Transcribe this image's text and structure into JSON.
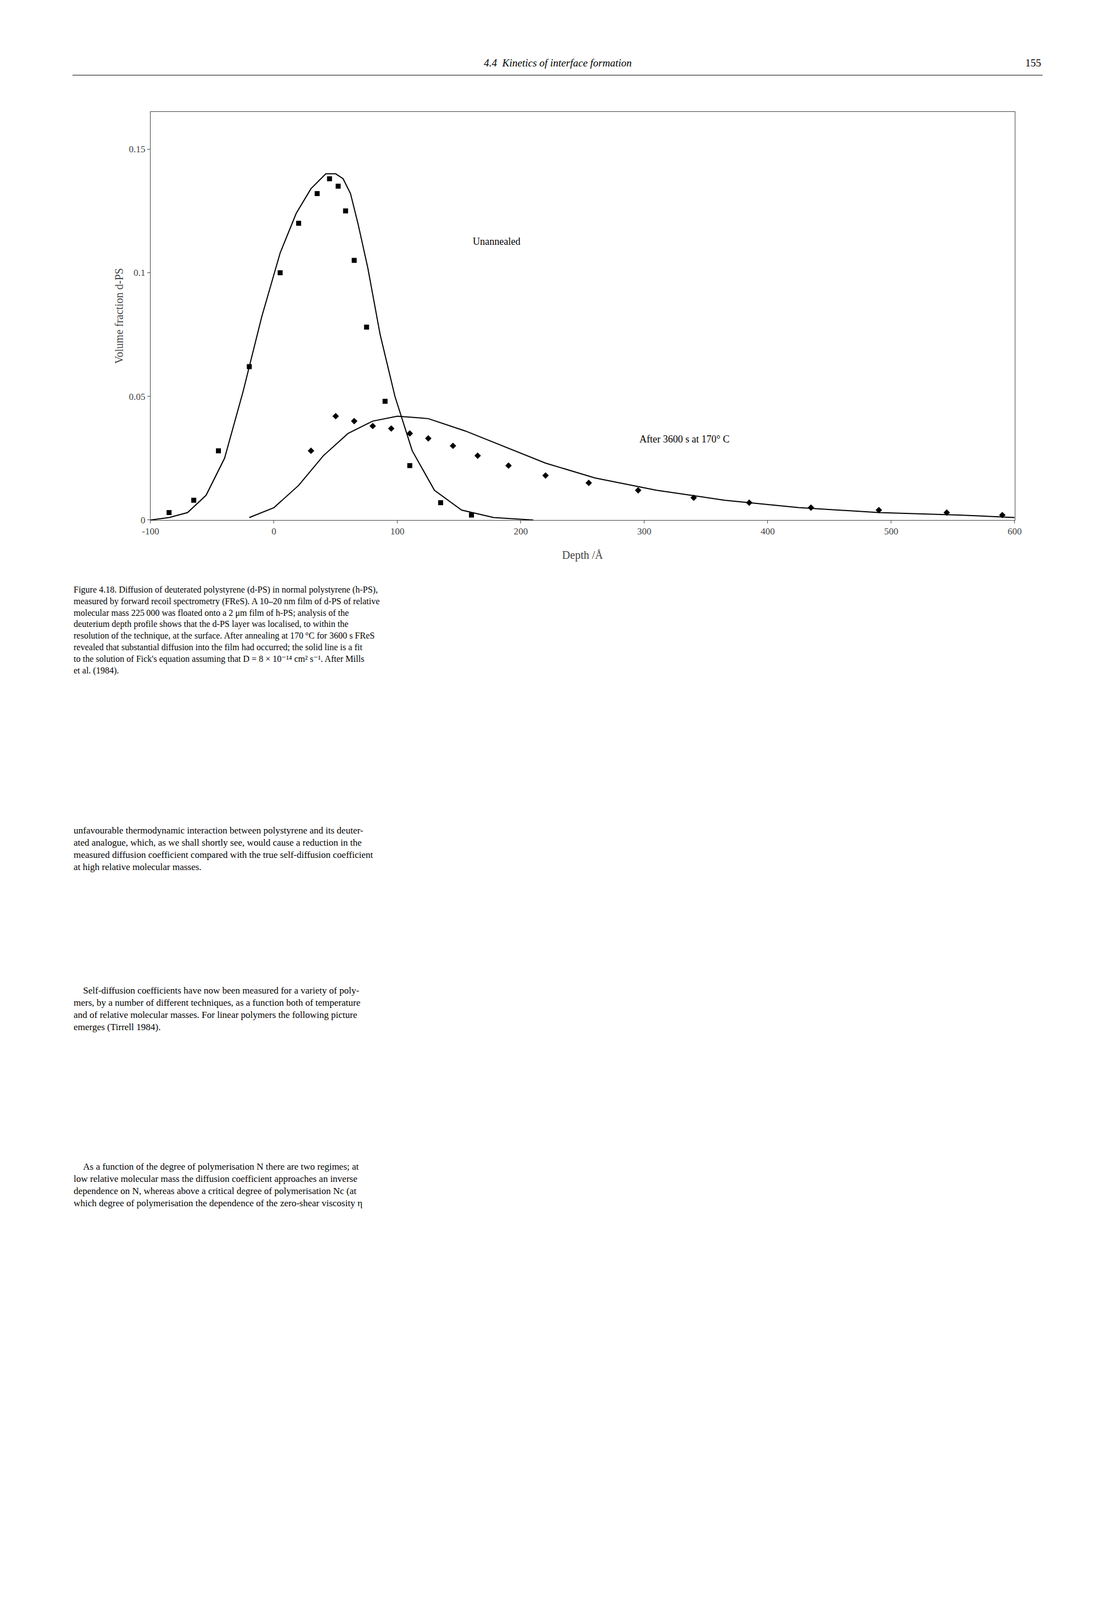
{
  "chart_data": {
    "type": "line",
    "xlabel": "Depth /Å",
    "ylabel": "Volume fraction d-PS",
    "xlim": [
      -100,
      600
    ],
    "ylim": [
      0,
      0.165
    ],
    "xticks": [
      -100,
      0,
      100,
      200,
      300,
      400,
      500,
      600
    ],
    "yticks": [
      0,
      0.05,
      0.1,
      0.15
    ],
    "grid": false,
    "series": [
      {
        "type": "scatter",
        "marker": "square",
        "color": "black",
        "x": [
          -85,
          -65,
          -45,
          -20,
          5,
          20,
          35,
          45,
          52,
          58,
          65,
          75,
          90,
          110,
          135,
          160
        ],
        "values": [
          0.003,
          0.008,
          0.028,
          0.062,
          0.1,
          0.12,
          0.132,
          0.138,
          0.135,
          0.125,
          0.105,
          0.078,
          0.048,
          0.022,
          0.007,
          0.002
        ]
      },
      {
        "type": "line",
        "line_style": "solid",
        "color": "black",
        "x": [
          -100,
          -85,
          -70,
          -55,
          -40,
          -25,
          -10,
          5,
          18,
          30,
          42,
          50,
          56,
          62,
          68,
          76,
          86,
          98,
          112,
          130,
          152,
          178,
          210
        ],
        "values": [
          0.0,
          0.001,
          0.003,
          0.01,
          0.025,
          0.052,
          0.082,
          0.108,
          0.124,
          0.134,
          0.14,
          0.14,
          0.138,
          0.132,
          0.12,
          0.102,
          0.075,
          0.05,
          0.028,
          0.012,
          0.004,
          0.001,
          0.0
        ]
      },
      {
        "type": "scatter",
        "marker": "diamond",
        "color": "black",
        "x": [
          30,
          50,
          65,
          80,
          95,
          110,
          125,
          145,
          165,
          190,
          220,
          255,
          295,
          340,
          385,
          435,
          490,
          545,
          590
        ],
        "values": [
          0.028,
          0.042,
          0.04,
          0.038,
          0.037,
          0.035,
          0.033,
          0.03,
          0.026,
          0.022,
          0.018,
          0.015,
          0.012,
          0.009,
          0.007,
          0.005,
          0.004,
          0.003,
          0.002
        ]
      },
      {
        "type": "line",
        "line_style": "solid",
        "color": "black",
        "x": [
          -20,
          0,
          20,
          40,
          60,
          80,
          100,
          125,
          155,
          185,
          220,
          260,
          310,
          365,
          425,
          490,
          555,
          600
        ],
        "values": [
          0.001,
          0.005,
          0.014,
          0.026,
          0.035,
          0.04,
          0.042,
          0.041,
          0.036,
          0.03,
          0.023,
          0.017,
          0.012,
          0.008,
          0.005,
          0.003,
          0.002,
          0.001
        ]
      }
    ],
    "annotations": [
      {
        "text": "Unannealed",
        "x": 160,
        "y": 0.11
      },
      {
        "text": "After 3600 s at 170° C",
        "x": 295,
        "y": 0.03
      },
      {
        "text": "4.4  Kinetics of interface formation"
      },
      {
        "text": "155"
      },
      {
        "text": "Figure 4.18. Diffusion of deuterated polystyrene (d-PS) in normal polystyrene (h-PS),\nmeasured by forward recoil spectrometry (FReS). A 10–20 nm film of d-PS of relative\nmolecular mass 225 000 was floated onto a 2 μm film of h-PS; analysis of the\ndeuterium depth profile shows that the d-PS layer was localised, to within the\nresolution of the technique, at the surface. After annealing at 170 °C for 3600 s FReS\nrevealed that substantial diffusion into the film had occurred; the solid line is a fit\nto the solution of Fick's equation assuming that D = 8 × 10⁻¹⁴ cm² s⁻¹. After Mills\net al. (1984)."
      },
      {
        "text": "unfavourable thermodynamic interaction between polystyrene and its deuter-\nated analogue, which, as we shall shortly see, would cause a reduction in the\nmeasured diffusion coefficient compared with the true self-diffusion coefficient\nat high relative molecular masses."
      },
      {
        "text": "    Self-diffusion coefficients have now been measured for a variety of poly-\nmers, by a number of different techniques, as a function both of temperature\nand of relative molecular masses. For linear polymers the following picture\nemerges (Tirrell 1984)."
      },
      {
        "text": "    As a function of the degree of polymerisation N there are two regimes; at\nlow relative molecular mass the diffusion coefficient approaches an inverse\ndependence on N, whereas above a critical degree of polymerisation Nc (at\nwhich degree of polymerisation the dependence of the zero-shear viscosity η"
      }
    ]
  }
}
